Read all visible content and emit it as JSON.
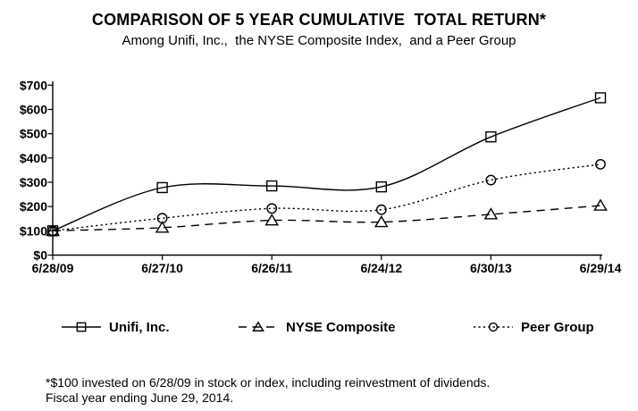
{
  "chart_data": {
    "type": "line",
    "title": "COMPARISON OF 5 YEAR CUMULATIVE  TOTAL RETURN*",
    "subtitle": "Among Unifi, Inc.,  the NYSE Composite Index,  and a Peer Group",
    "categories": [
      "6/28/09",
      "6/27/10",
      "6/26/11",
      "6/24/12",
      "6/30/13",
      "6/29/14"
    ],
    "series": [
      {
        "name": "Unifi, Inc.",
        "marker": "square",
        "line_style": "solid",
        "values": [
          100,
          278,
          285,
          281,
          487,
          648
        ]
      },
      {
        "name": "NYSE Composite",
        "marker": "triangle",
        "line_style": "dashed",
        "values": [
          100,
          113,
          143,
          136,
          168,
          204
        ]
      },
      {
        "name": "Peer Group",
        "marker": "circle",
        "line_style": "dotted",
        "values": [
          100,
          152,
          192,
          187,
          309,
          374
        ]
      }
    ],
    "y_axis": {
      "min": 0,
      "max": 700,
      "step": 100,
      "tick_prefix": "$"
    },
    "xlabel": "",
    "ylabel": "",
    "ylim": [
      0,
      700
    ],
    "grid": false,
    "smoothed": true,
    "legend_position": "bottom",
    "line_color": "#000000",
    "background_color": "#ffffff"
  },
  "footnote": {
    "line1": "*$100 invested on 6/28/09 in stock or index, including reinvestment of dividends.",
    "line2": "Fiscal year ending June 29, 2014."
  }
}
